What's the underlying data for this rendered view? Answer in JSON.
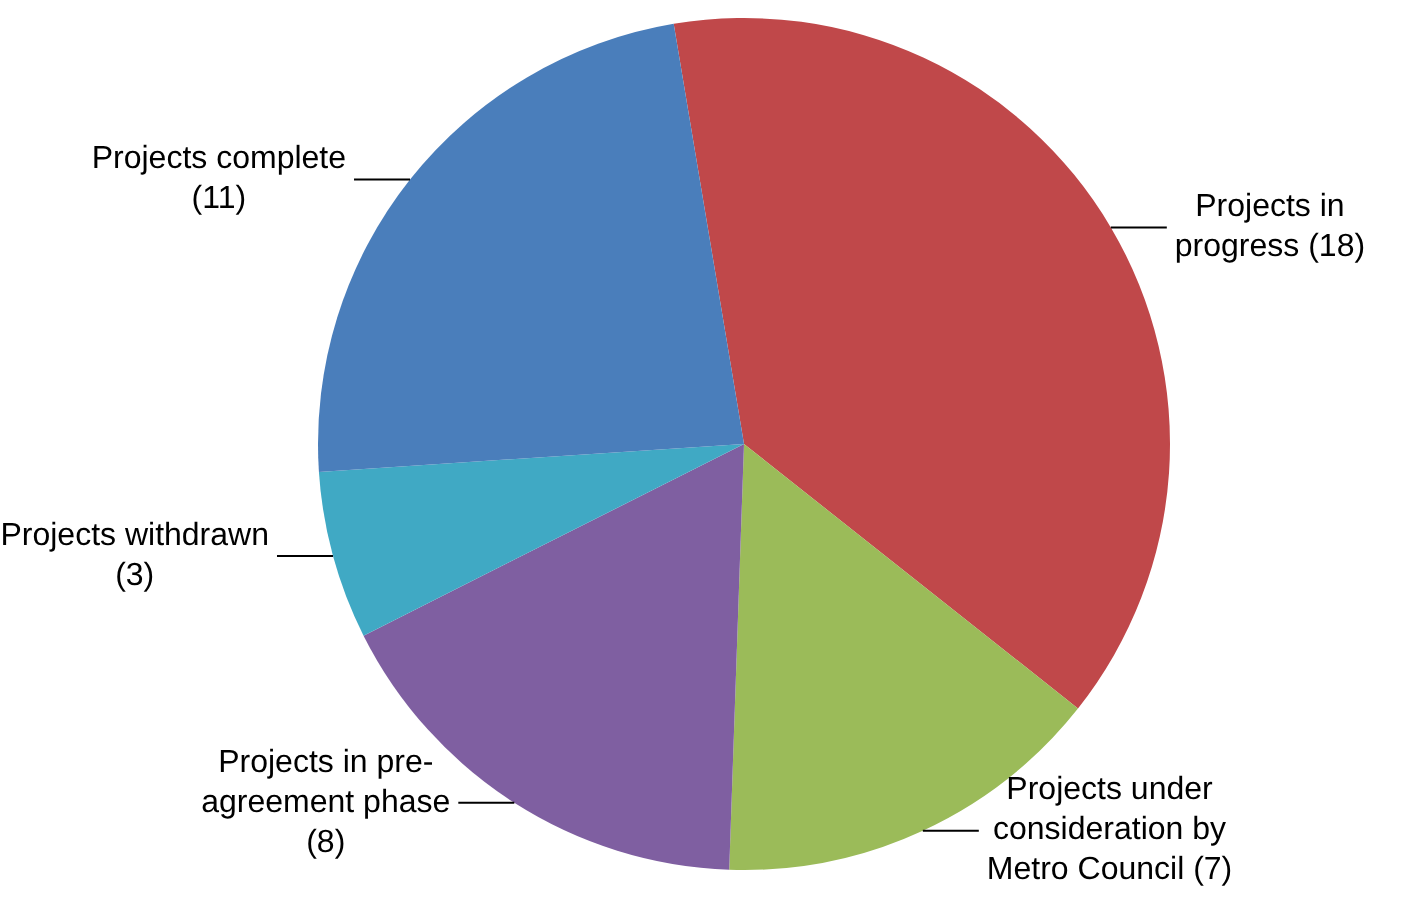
{
  "chart_data": {
    "type": "pie",
    "categories": [
      "Projects in progress (18)",
      "Projects under consideration by Metro Council (7)",
      "Projects in pre-agreement phase (8)",
      "Projects withdrawn (3)",
      "Projects complete (11)"
    ],
    "values": [
      18,
      7,
      8,
      3,
      11
    ],
    "colors": [
      "#c0484a",
      "#9bbb59",
      "#7f5fa1",
      "#40a9c4",
      "#4a7ebb"
    ]
  }
}
